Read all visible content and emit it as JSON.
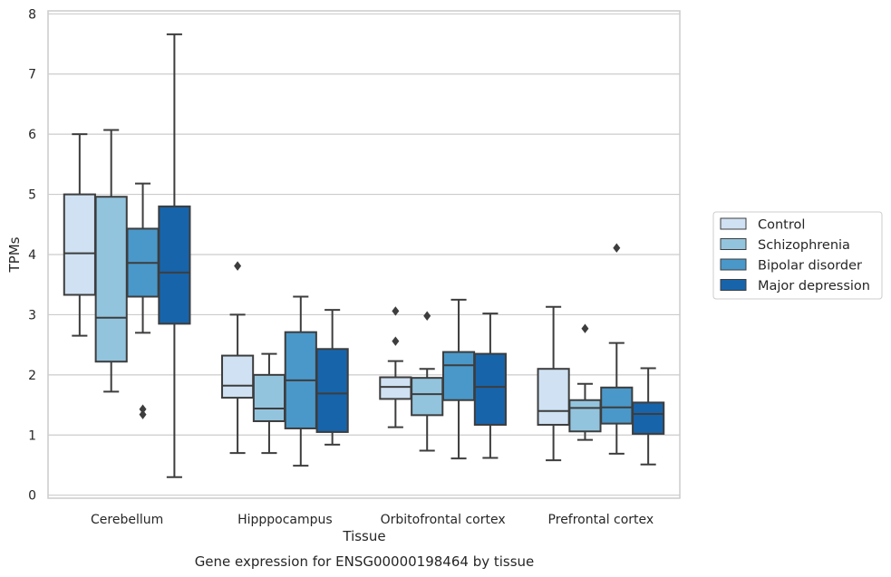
{
  "chart_data": {
    "type": "box",
    "xlabel": "Tissue",
    "ylabel": "TPMs",
    "caption": "Gene expression for ENSG00000198464 by tissue",
    "ylim": [
      -0.05,
      8.05
    ],
    "yticks": [
      0,
      1,
      2,
      3,
      4,
      5,
      6,
      7,
      8
    ],
    "grid": "horizontal",
    "legend_position": "right",
    "categories": [
      "Cerebellum",
      "Hipppocampus",
      "Orbitofrontal cortex",
      "Prefrontal cortex"
    ],
    "series": [
      {
        "name": "Control",
        "color": "#cfe1f2",
        "boxes": [
          {
            "whisker_low": 2.65,
            "q1": 3.33,
            "median": 4.02,
            "q3": 5.0,
            "whisker_high": 6.0,
            "outliers": []
          },
          {
            "whisker_low": 0.7,
            "q1": 1.62,
            "median": 1.82,
            "q3": 2.32,
            "whisker_high": 3.0,
            "outliers": [
              3.81
            ]
          },
          {
            "whisker_low": 1.13,
            "q1": 1.6,
            "median": 1.8,
            "q3": 1.96,
            "whisker_high": 2.23,
            "outliers": [
              2.56,
              3.06
            ]
          },
          {
            "whisker_low": 0.58,
            "q1": 1.17,
            "median": 1.4,
            "q3": 2.1,
            "whisker_high": 3.13,
            "outliers": []
          }
        ]
      },
      {
        "name": "Schizophrenia",
        "color": "#93c4de",
        "boxes": [
          {
            "whisker_low": 1.72,
            "q1": 2.22,
            "median": 2.95,
            "q3": 4.96,
            "whisker_high": 6.07,
            "outliers": []
          },
          {
            "whisker_low": 0.7,
            "q1": 1.23,
            "median": 1.44,
            "q3": 2.0,
            "whisker_high": 2.35,
            "outliers": []
          },
          {
            "whisker_low": 0.74,
            "q1": 1.33,
            "median": 1.68,
            "q3": 1.95,
            "whisker_high": 2.1,
            "outliers": [
              2.98
            ]
          },
          {
            "whisker_low": 0.92,
            "q1": 1.06,
            "median": 1.45,
            "q3": 1.58,
            "whisker_high": 1.85,
            "outliers": [
              2.77
            ]
          }
        ]
      },
      {
        "name": "Bipolar disorder",
        "color": "#4a98c9",
        "boxes": [
          {
            "whisker_low": 2.7,
            "q1": 3.3,
            "median": 3.86,
            "q3": 4.43,
            "whisker_high": 5.18,
            "outliers": [
              1.34,
              1.43
            ]
          },
          {
            "whisker_low": 0.49,
            "q1": 1.11,
            "median": 1.91,
            "q3": 2.71,
            "whisker_high": 3.3,
            "outliers": []
          },
          {
            "whisker_low": 0.61,
            "q1": 1.58,
            "median": 2.16,
            "q3": 2.38,
            "whisker_high": 3.25,
            "outliers": []
          },
          {
            "whisker_low": 0.69,
            "q1": 1.19,
            "median": 1.46,
            "q3": 1.79,
            "whisker_high": 2.53,
            "outliers": [
              4.11
            ]
          }
        ]
      },
      {
        "name": "Major depression",
        "color": "#1764ab",
        "boxes": [
          {
            "whisker_low": 0.3,
            "q1": 2.85,
            "median": 3.7,
            "q3": 4.8,
            "whisker_high": 7.66,
            "outliers": []
          },
          {
            "whisker_low": 0.84,
            "q1": 1.05,
            "median": 1.69,
            "q3": 2.43,
            "whisker_high": 3.08,
            "outliers": []
          },
          {
            "whisker_low": 0.62,
            "q1": 1.17,
            "median": 1.8,
            "q3": 2.35,
            "whisker_high": 3.02,
            "outliers": []
          },
          {
            "whisker_low": 0.51,
            "q1": 1.02,
            "median": 1.35,
            "q3": 1.54,
            "whisker_high": 2.11,
            "outliers": []
          }
        ]
      }
    ]
  }
}
